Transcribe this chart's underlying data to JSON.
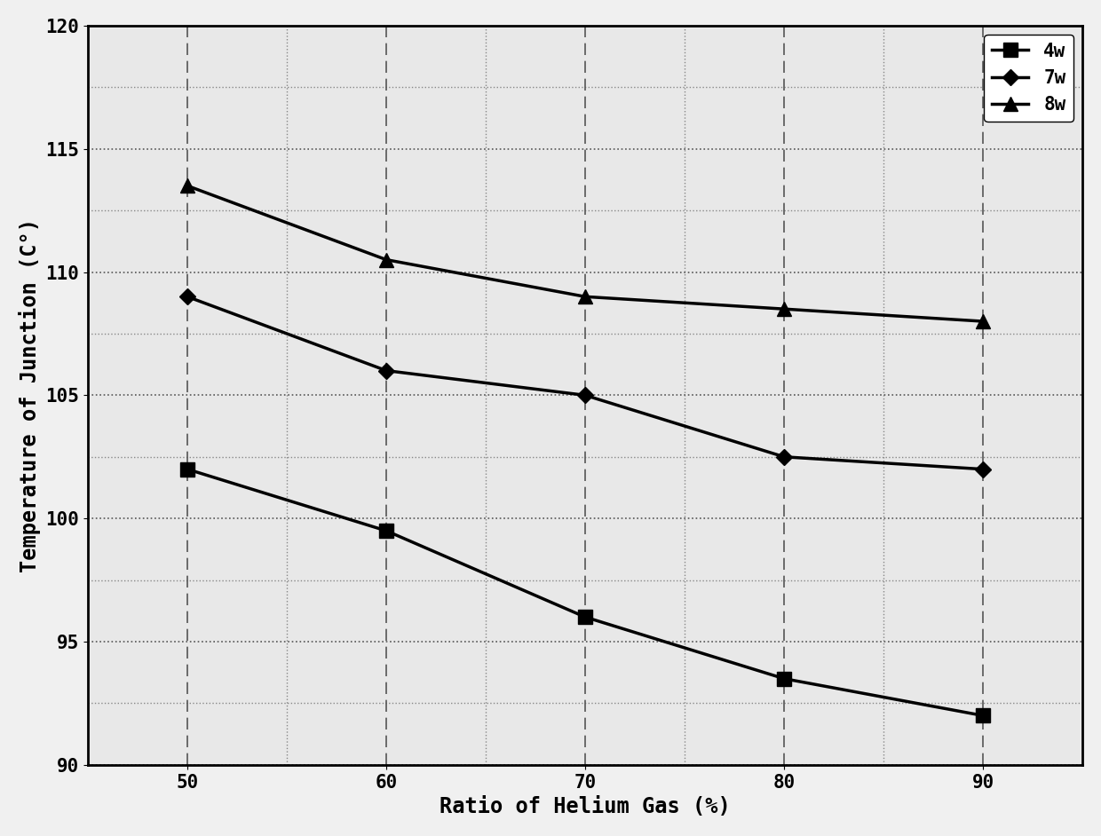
{
  "x": [
    50,
    60,
    70,
    80,
    90
  ],
  "series": [
    {
      "label": "4w",
      "y": [
        102,
        99.5,
        96,
        93.5,
        92
      ],
      "marker": "s",
      "linestyle": "-",
      "color": "#000000",
      "markersize": 11
    },
    {
      "label": "7w",
      "y": [
        109,
        106,
        105,
        102.5,
        102
      ],
      "marker": "D",
      "linestyle": "-",
      "color": "#000000",
      "markersize": 9
    },
    {
      "label": "8w",
      "y": [
        113.5,
        110.5,
        109,
        108.5,
        108
      ],
      "marker": "^",
      "linestyle": "-",
      "color": "#000000",
      "markersize": 12
    }
  ],
  "xlabel": "Ratio of Helium Gas (%)",
  "ylabel": "Temperature of Junction (C°)",
  "ylim": [
    90,
    120
  ],
  "xlim": [
    45,
    95
  ],
  "yticks": [
    90,
    95,
    100,
    105,
    110,
    115,
    120
  ],
  "xticks": [
    50,
    60,
    70,
    80,
    90
  ],
  "minor_yticks": [
    92.5,
    97.5,
    102.5,
    107.5,
    112.5,
    117.5
  ],
  "minor_xticks": [
    55,
    65,
    75,
    85
  ],
  "grid_major_color": "#555555",
  "grid_minor_color": "#888888",
  "background_color": "#f0f0f0",
  "plot_bg_color": "#e8e8e8",
  "linewidth": 2.5,
  "legend_fontsize": 15,
  "axis_label_fontsize": 17,
  "tick_fontsize": 15,
  "legend_loc": "upper right"
}
